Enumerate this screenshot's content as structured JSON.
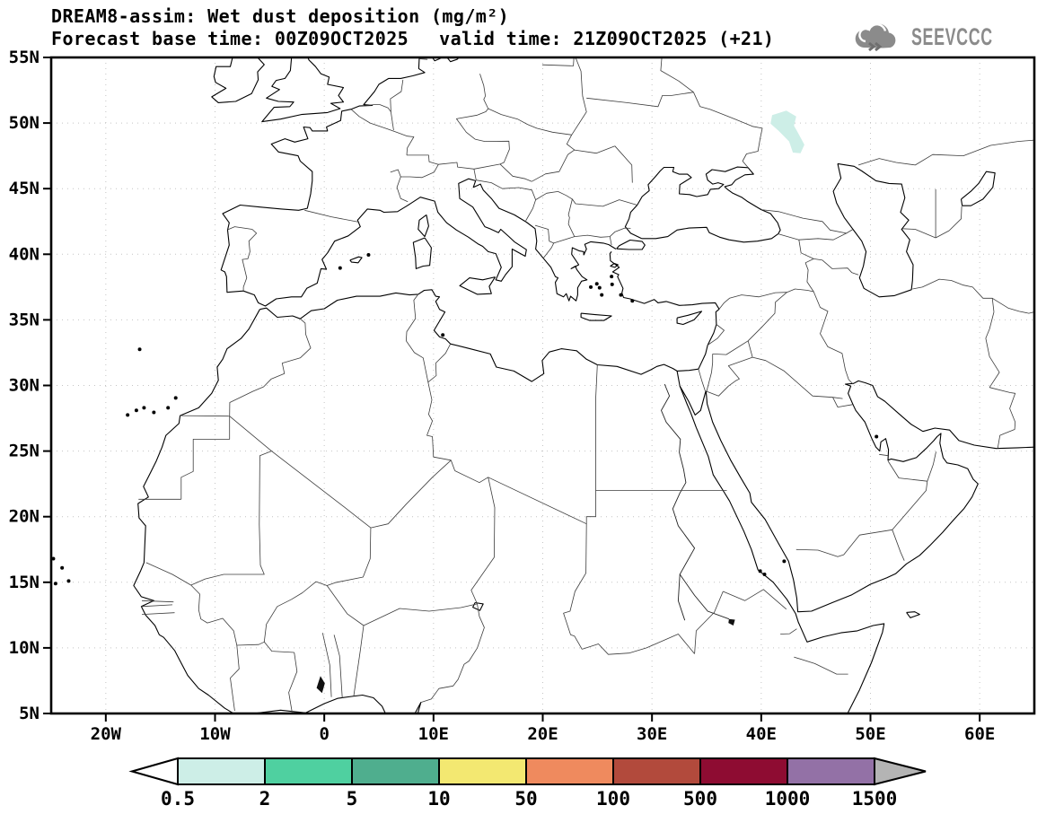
{
  "header": {
    "line1": "DREAM8-assim: Wet dust deposition (mg/m²)",
    "line2_left": "Forecast base time: 00Z09OCT2025",
    "line2_right": "valid time: 21Z09OCT2025 (+21)"
  },
  "logo": {
    "text": "SEEVCCC",
    "icon": "cloud-chevrons-icon",
    "color": "#8b8b8b"
  },
  "map": {
    "projection": "equirectangular",
    "domain": {
      "lon_min": -25,
      "lon_max": 65,
      "lat_min": 5,
      "lat_max": 55
    },
    "lat_tick_labels": [
      "55N",
      "50N",
      "45N",
      "40N",
      "35N",
      "30N",
      "25N",
      "20N",
      "15N",
      "10N",
      "5N"
    ],
    "lon_tick_labels": [
      "20W",
      "10W",
      "0",
      "10E",
      "20E",
      "30E",
      "40E",
      "50E",
      "60E"
    ],
    "grid_style": "dotted",
    "grid_color": "#c4c4c4",
    "coastline_color": "#000000",
    "border_color": "#3c3c3c",
    "background": "#ffffff"
  },
  "chart_data": {
    "type": "heatmap",
    "title": "DREAM8-assim: Wet dust deposition (mg/m²)",
    "model": "DREAM8-assim",
    "variable": "Wet dust deposition",
    "units": "mg/m²",
    "forecast_base_time": "00Z09OCT2025",
    "valid_time": "21Z09OCT2025",
    "lead_hours": "+21",
    "levels": [
      0.5,
      2,
      5,
      10,
      50,
      100,
      500,
      1000,
      1500
    ],
    "palette": [
      "#cdeee7",
      "#4fd0a0",
      "#4fae8e",
      "#f3e871",
      "#ef8a5e",
      "#b24a3c",
      "#8e0c32",
      "#9371a6"
    ],
    "overflow_color": "#b4b4b4",
    "regions": [
      {
        "description": "single wet-deposition patch near 48-51N, 41-44E (Russia/Ukraine border area)",
        "value_range": "0.5–2 mg/m²",
        "color": "#cdeee7",
        "polygon_lonlat": [
          [
            41.0,
            50.6
          ],
          [
            42.3,
            50.95
          ],
          [
            43.2,
            50.5
          ],
          [
            43.0,
            49.8
          ],
          [
            43.4,
            49.2
          ],
          [
            43.95,
            48.35
          ],
          [
            43.6,
            47.7
          ],
          [
            42.9,
            47.75
          ],
          [
            42.55,
            48.6
          ],
          [
            41.6,
            49.4
          ],
          [
            40.85,
            49.95
          ],
          [
            41.0,
            50.6
          ]
        ]
      }
    ]
  },
  "colorbar": {
    "labels": [
      "0.5",
      "2",
      "5",
      "10",
      "50",
      "100",
      "500",
      "1000",
      "1500"
    ],
    "segment_colors": [
      "#cdeee7",
      "#4fd0a0",
      "#4fae8e",
      "#f3e871",
      "#ef8a5e",
      "#b24a3c",
      "#8e0c32",
      "#9371a6"
    ],
    "left_arrow_color": "#ffffff",
    "right_arrow_color": "#b4b4b4",
    "outline_color": "#000000"
  }
}
